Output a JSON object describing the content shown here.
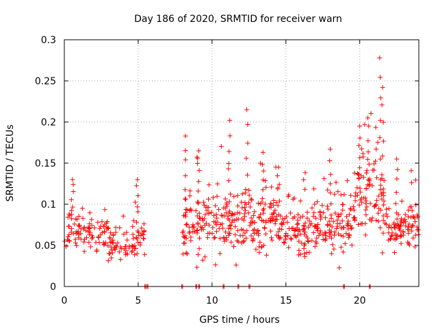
{
  "chart_data": {
    "type": "scatter",
    "title": "Day 186 of 2020, SRMTID for receiver warn",
    "xlabel": "GPS time / hours",
    "ylabel": "SRMTID / TECUs",
    "xlim": [
      0,
      24
    ],
    "ylim": [
      0,
      0.3
    ],
    "x_ticks": [
      0,
      5,
      10,
      15,
      20
    ],
    "x_tick_labels": [
      "0",
      "5",
      "10",
      "15",
      "20"
    ],
    "y_ticks": [
      0,
      0.05,
      0.1,
      0.15,
      0.2,
      0.25,
      0.3
    ],
    "y_tick_labels": [
      "0",
      "0.05",
      "0.1",
      "0.15",
      "0.2",
      "0.25",
      "0.3"
    ],
    "grid": true,
    "marker": "+",
    "series": [
      {
        "name": "SRMTID",
        "color": "#ff0000",
        "profile": [
          {
            "x": 0.0,
            "y": 0.05,
            "spread": 0.01,
            "density": 30
          },
          {
            "x": 0.5,
            "y": 0.075,
            "spread": 0.025,
            "density": 30
          },
          {
            "x": 1.0,
            "y": 0.07,
            "spread": 0.025,
            "density": 30
          },
          {
            "x": 2.0,
            "y": 0.065,
            "spread": 0.02,
            "density": 30
          },
          {
            "x": 3.0,
            "y": 0.055,
            "spread": 0.02,
            "density": 30
          },
          {
            "x": 4.0,
            "y": 0.045,
            "spread": 0.02,
            "density": 30
          },
          {
            "x": 5.0,
            "y": 0.06,
            "spread": 0.02,
            "density": 30
          },
          {
            "x": 5.5,
            "y": 0.06,
            "spread": 0.015,
            "density": 30
          },
          {
            "x": 8.0,
            "y": 0.07,
            "spread": 0.03,
            "density": 40
          },
          {
            "x": 9.0,
            "y": 0.08,
            "spread": 0.035,
            "density": 40
          },
          {
            "x": 10.0,
            "y": 0.075,
            "spread": 0.03,
            "density": 40
          },
          {
            "x": 11.0,
            "y": 0.075,
            "spread": 0.03,
            "density": 40
          },
          {
            "x": 12.0,
            "y": 0.08,
            "spread": 0.035,
            "density": 40
          },
          {
            "x": 13.0,
            "y": 0.075,
            "spread": 0.03,
            "density": 40
          },
          {
            "x": 14.0,
            "y": 0.085,
            "spread": 0.03,
            "density": 40
          },
          {
            "x": 15.0,
            "y": 0.07,
            "spread": 0.025,
            "density": 40
          },
          {
            "x": 16.0,
            "y": 0.065,
            "spread": 0.025,
            "density": 40
          },
          {
            "x": 17.0,
            "y": 0.08,
            "spread": 0.03,
            "density": 40
          },
          {
            "x": 18.0,
            "y": 0.07,
            "spread": 0.025,
            "density": 40
          },
          {
            "x": 19.0,
            "y": 0.075,
            "spread": 0.03,
            "density": 40
          },
          {
            "x": 20.0,
            "y": 0.11,
            "spread": 0.04,
            "density": 40
          },
          {
            "x": 21.0,
            "y": 0.12,
            "spread": 0.05,
            "density": 40
          },
          {
            "x": 21.5,
            "y": 0.1,
            "spread": 0.04,
            "density": 40
          },
          {
            "x": 22.0,
            "y": 0.06,
            "spread": 0.02,
            "density": 40
          },
          {
            "x": 23.0,
            "y": 0.07,
            "spread": 0.025,
            "density": 40
          },
          {
            "x": 24.0,
            "y": 0.075,
            "spread": 0.025,
            "density": 40
          }
        ],
        "data_gap_hours": [
          5.6,
          7.9
        ],
        "peaks": [
          {
            "x": 0.55,
            "y": 0.13
          },
          {
            "x": 4.95,
            "y": 0.13
          },
          {
            "x": 8.2,
            "y": 0.183
          },
          {
            "x": 9.1,
            "y": 0.165
          },
          {
            "x": 11.2,
            "y": 0.202
          },
          {
            "x": 12.35,
            "y": 0.215
          },
          {
            "x": 13.45,
            "y": 0.163
          },
          {
            "x": 14.5,
            "y": 0.145
          },
          {
            "x": 18.0,
            "y": 0.167
          },
          {
            "x": 20.0,
            "y": 0.195
          },
          {
            "x": 20.55,
            "y": 0.205
          },
          {
            "x": 21.35,
            "y": 0.278
          },
          {
            "x": 21.55,
            "y": 0.242
          },
          {
            "x": 22.5,
            "y": 0.155
          }
        ],
        "zero_markers": [
          5.45,
          5.6,
          7.95,
          8.9,
          9.1,
          10.75,
          11.75,
          12.5,
          18.9,
          20.65
        ]
      }
    ]
  }
}
